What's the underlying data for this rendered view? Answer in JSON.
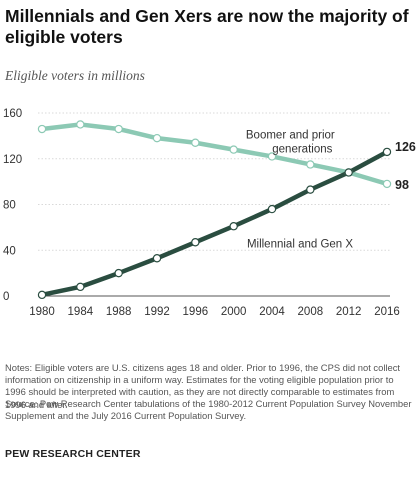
{
  "header": {
    "title": "Millennials and Gen Xers are now the majority of eligible voters",
    "subtitle": "Eligible voters in millions"
  },
  "footer": {
    "notes": "Notes: Eligible voters are U.S. citizens ages 18 and older. Prior to 1996, the CPS did not collect information on citizenship in a uniform way. Estimates for the voting eligible population prior to 1996 should be interpreted with caution, as they are not directly comparable to estimates from 1996 and after.",
    "source": "Source: Pew Research Center tabulations of the 1980-2012 Current Population Survey November Supplement and the July 2016 Current Population Survey.",
    "brand": "PEW RESEARCH CENTER"
  },
  "chart_data": {
    "type": "line",
    "x": [
      1980,
      1984,
      1988,
      1992,
      1996,
      2000,
      2004,
      2008,
      2012,
      2016
    ],
    "ylim": [
      0,
      160
    ],
    "yticks": [
      0,
      40,
      80,
      120,
      160
    ],
    "xticks": [
      "1980",
      "1984",
      "1988",
      "1992",
      "1996",
      "2000",
      "2004",
      "2008",
      "2012",
      "2016"
    ],
    "grid": true,
    "series": [
      {
        "name": "Boomer and prior generations",
        "label_lines": [
          "Boomer and prior",
          "generations"
        ],
        "color": "#8cc9b4",
        "values": [
          146,
          150,
          146,
          138,
          134,
          128,
          122,
          115,
          108,
          98
        ],
        "end_label": "98"
      },
      {
        "name": "Millennial and Gen X",
        "label_lines": [
          "Millennial and Gen X"
        ],
        "color": "#2a4d40",
        "values": [
          1,
          8,
          20,
          33,
          47,
          61,
          76,
          93,
          108,
          126
        ],
        "end_label": "126"
      }
    ]
  }
}
